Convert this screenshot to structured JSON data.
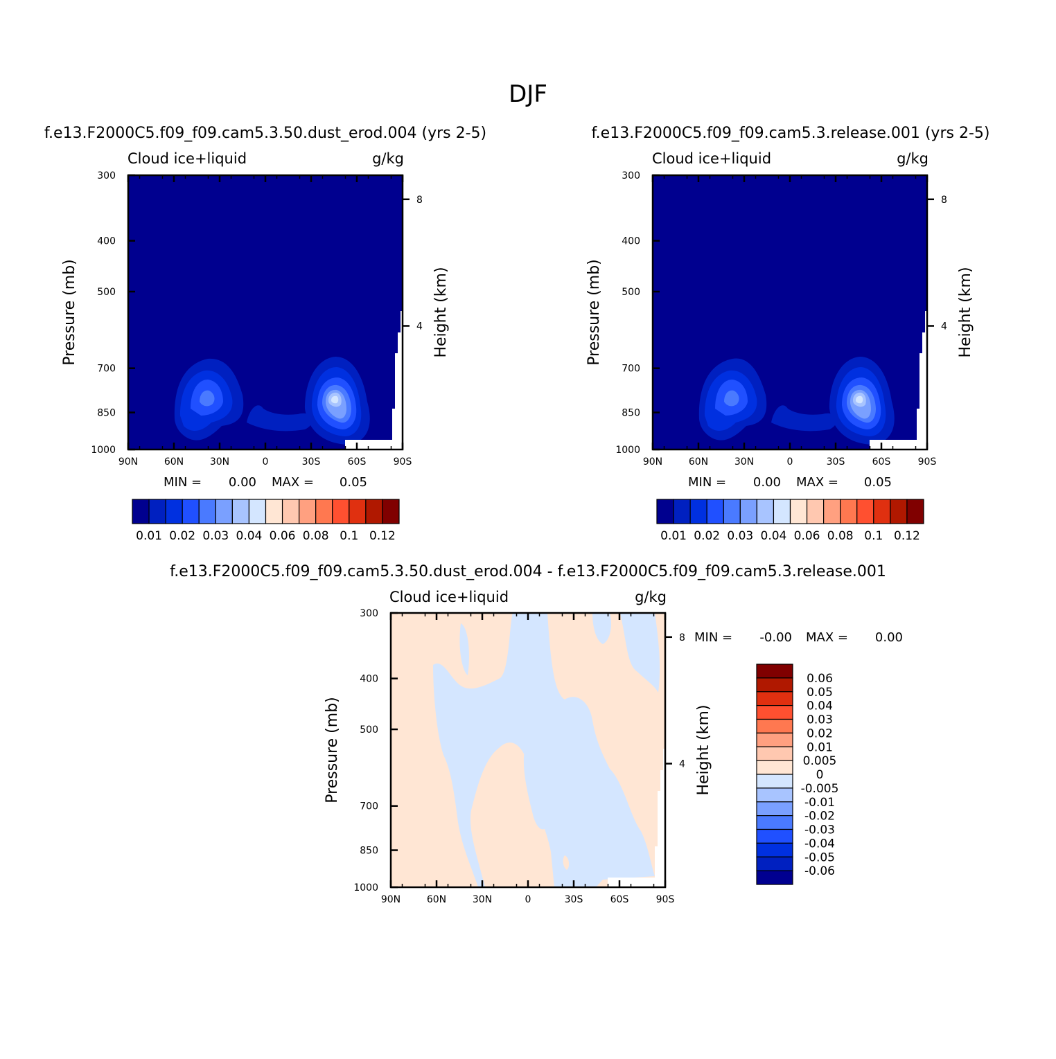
{
  "title": "DJF",
  "colors": {
    "abs_scale": [
      "#00008f",
      "#0020c0",
      "#0030e0",
      "#2050ff",
      "#4a7aff",
      "#7aa0ff",
      "#a8c4ff",
      "#d4e6ff",
      "#ffe6d4",
      "#ffc8b0",
      "#ffa080",
      "#ff7850",
      "#ff5030",
      "#e03010",
      "#b01800",
      "#800000"
    ],
    "diff_scale": [
      "#000090",
      "#0020c0",
      "#0030e0",
      "#2050ff",
      "#4a7aff",
      "#7aa0ff",
      "#a8c4ff",
      "#d4e6ff",
      "#ffe6d4",
      "#ffc8b0",
      "#ffa080",
      "#ff7850",
      "#ff5030",
      "#e03010",
      "#b01800",
      "#800000"
    ]
  },
  "chart_data": [
    {
      "type": "heatmap",
      "panel": "left",
      "title": "f.e13.F2000C5.f09_f09.cam5.3.50.dust_erod.004 (yrs 2-5)",
      "variable": "Cloud ice+liquid",
      "units": "g/kg",
      "ylabel": "Pressure (mb)",
      "y2label": "Height (km)",
      "x_ticks": [
        "90N",
        "60N",
        "30N",
        "0",
        "30S",
        "60S",
        "90S"
      ],
      "y_ticks": [
        "300",
        "400",
        "500",
        "700",
        "850",
        "1000"
      ],
      "y2_ticks": [
        "8",
        "4"
      ],
      "min_label": "MIN =",
      "min_value": "0.00",
      "max_label": "MAX =",
      "max_value": "0.05",
      "colorbar_labels": [
        "0.01",
        "0.02",
        "0.03",
        "0.04",
        "0.06",
        "0.08",
        "0.1",
        "0.12"
      ],
      "features": [
        {
          "lat": 40,
          "pressure": 870,
          "value": 0.04
        },
        {
          "lat": -45,
          "pressure": 880,
          "value": 0.05
        }
      ]
    },
    {
      "type": "heatmap",
      "panel": "right",
      "title": "f.e13.F2000C5.f09_f09.cam5.3.release.001 (yrs 2-5)",
      "variable": "Cloud ice+liquid",
      "units": "g/kg",
      "ylabel": "Pressure (mb)",
      "y2label": "Height (km)",
      "x_ticks": [
        "90N",
        "60N",
        "30N",
        "0",
        "30S",
        "60S",
        "90S"
      ],
      "y_ticks": [
        "300",
        "400",
        "500",
        "700",
        "850",
        "1000"
      ],
      "y2_ticks": [
        "8",
        "4"
      ],
      "min_label": "MIN =",
      "min_value": "0.00",
      "max_label": "MAX =",
      "max_value": "0.05",
      "colorbar_labels": [
        "0.01",
        "0.02",
        "0.03",
        "0.04",
        "0.06",
        "0.08",
        "0.1",
        "0.12"
      ],
      "features": [
        {
          "lat": 40,
          "pressure": 870,
          "value": 0.04
        },
        {
          "lat": -45,
          "pressure": 880,
          "value": 0.05
        }
      ]
    },
    {
      "type": "heatmap",
      "panel": "difference",
      "title": "f.e13.F2000C5.f09_f09.cam5.3.50.dust_erod.004 - f.e13.F2000C5.f09_f09.cam5.3.release.001",
      "variable": "Cloud ice+liquid",
      "units": "g/kg",
      "ylabel": "Pressure (mb)",
      "y2label": "Height (km)",
      "x_ticks": [
        "90N",
        "60N",
        "30N",
        "0",
        "30S",
        "60S",
        "90S"
      ],
      "y_ticks": [
        "300",
        "400",
        "500",
        "700",
        "850",
        "1000"
      ],
      "y2_ticks": [
        "8",
        "4"
      ],
      "min_label": "MIN =",
      "min_value": "-0.00",
      "max_label": "MAX =",
      "max_value": "0.00",
      "colorbar_labels": [
        "0.06",
        "0.05",
        "0.04",
        "0.03",
        "0.02",
        "0.01",
        "0.005",
        "0",
        "-0.005",
        "-0.01",
        "-0.02",
        "-0.03",
        "-0.04",
        "-0.05",
        "-0.06"
      ]
    }
  ]
}
